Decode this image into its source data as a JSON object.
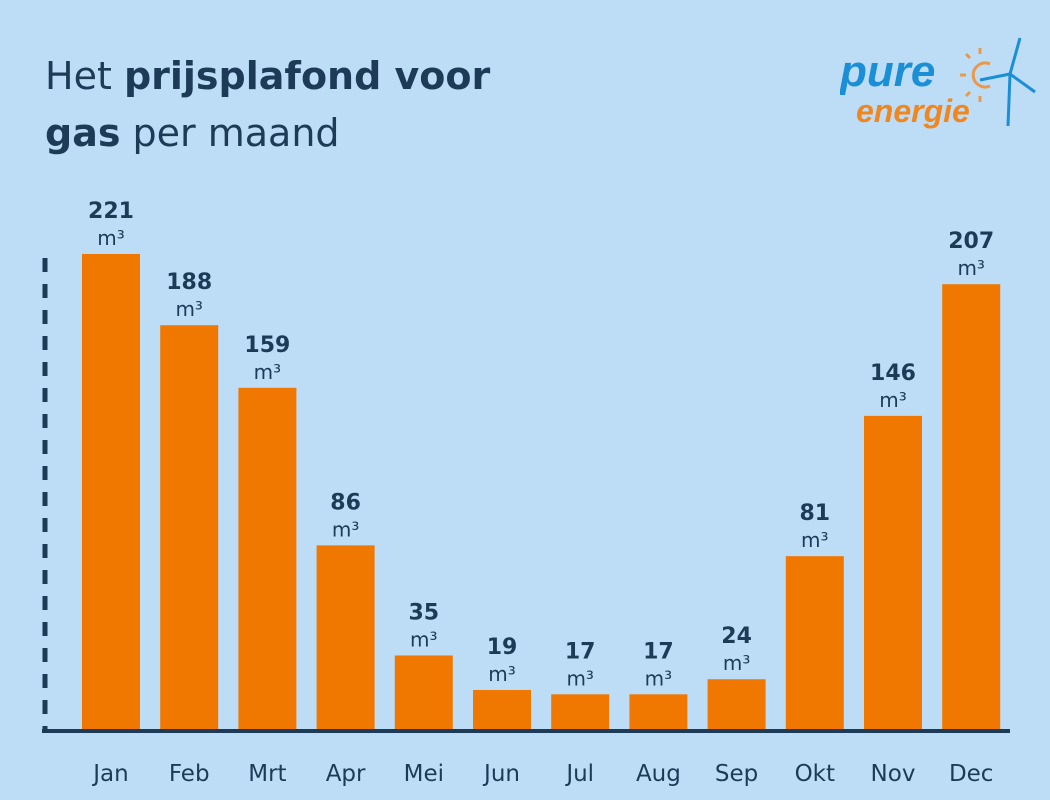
{
  "title": {
    "part1": "Het ",
    "part2_bold": "prijsplafond voor",
    "part3_bold": "gas",
    "part4": " per maand"
  },
  "logo": {
    "line1": "pure",
    "line2": "energie"
  },
  "colors": {
    "background": "#bddcf6",
    "bar": "#f07800",
    "text": "#1d3b57",
    "logo_blue": "#1a8fd6",
    "logo_orange": "#f0861e"
  },
  "chart_data": {
    "type": "bar",
    "title": "Het prijsplafond voor gas per maand",
    "categories": [
      "Jan",
      "Feb",
      "Mrt",
      "Apr",
      "Mei",
      "Jun",
      "Jul",
      "Aug",
      "Sep",
      "Okt",
      "Nov",
      "Dec"
    ],
    "values": [
      221,
      188,
      159,
      86,
      35,
      19,
      17,
      17,
      24,
      81,
      146,
      207
    ],
    "unit": "m³",
    "xlabel": "",
    "ylabel": "",
    "ylim": [
      0,
      221
    ],
    "grid": false
  }
}
